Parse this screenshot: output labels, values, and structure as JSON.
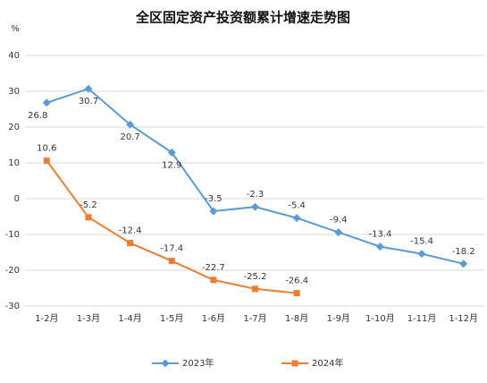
{
  "chart_data": {
    "type": "line",
    "title": "全区固定资产投资额累计增速走势图",
    "y_label": "%",
    "categories": [
      "1-2月",
      "1-3月",
      "1-4月",
      "1-5月",
      "1-6月",
      "1-7月",
      "1-8月",
      "1-9月",
      "1-10月",
      "1-11月",
      "1-12月"
    ],
    "series": [
      {
        "name": "2023年",
        "color": "#5b9bd5",
        "marker": "diamond",
        "values": [
          26.8,
          30.7,
          20.7,
          12.9,
          -3.5,
          -2.3,
          -5.4,
          -9.4,
          -13.4,
          -15.4,
          -18.2
        ]
      },
      {
        "name": "2024年",
        "color": "#ed7d31",
        "marker": "square",
        "values": [
          10.6,
          -5.2,
          -12.4,
          -17.4,
          -22.7,
          -25.2,
          -26.4,
          null,
          null,
          null,
          null
        ]
      }
    ],
    "ylim": [
      -30,
      40
    ],
    "yticks": [
      -30,
      -20,
      -10,
      0,
      10,
      20,
      30,
      40
    ],
    "grid": true,
    "legend": "bottom"
  }
}
